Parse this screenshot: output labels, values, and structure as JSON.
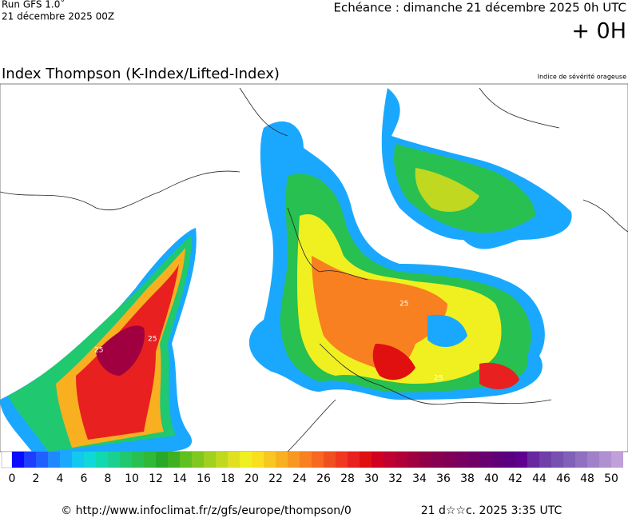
{
  "header": {
    "run": "Run GFS 1.0˚",
    "run_date": "21 décembre 2025 00Z",
    "valid": "Echéance : dimanche 21 décembre 2025 0h UTC",
    "lead": "+ 0H"
  },
  "map": {
    "title": "Index Thompson (K-Index/Lifted-Index)",
    "subtitle": "Indice de sévérité orageuse",
    "labels": [
      "25",
      "25",
      "25",
      "25"
    ]
  },
  "colorbar": {
    "ticks": [
      0,
      2,
      4,
      6,
      8,
      10,
      12,
      14,
      16,
      18,
      20,
      22,
      24,
      26,
      28,
      30,
      32,
      34,
      36,
      38,
      40,
      42,
      44,
      46,
      48,
      50
    ],
    "colors": [
      "#0a0aff",
      "#1d3dff",
      "#2060ff",
      "#1e88ff",
      "#1aa8ff",
      "#12c8f0",
      "#10d8d8",
      "#10d8b0",
      "#18d090",
      "#20c870",
      "#28c050",
      "#30b838",
      "#28a828",
      "#40b020",
      "#60c020",
      "#80c820",
      "#a0d020",
      "#c0d820",
      "#e0e020",
      "#f0f020",
      "#f8e020",
      "#f8c820",
      "#f8b020",
      "#f89820",
      "#f88020",
      "#f86820",
      "#f05020",
      "#f03820",
      "#e82020",
      "#e01010",
      "#d00020",
      "#c00030",
      "#b00038",
      "#a00040",
      "#900048",
      "#880050",
      "#800058",
      "#780060",
      "#700068",
      "#680070",
      "#600078",
      "#580080",
      "#600090",
      "#6828a0",
      "#7040a8",
      "#7850b0",
      "#8060b8",
      "#9070c0",
      "#a080c8",
      "#b090d0",
      "#c0a0d8"
    ]
  },
  "footer": {
    "source": "© http://www.infoclimat.fr/z/gfs/europe/thompson/0",
    "timestamp": "21 d☆☆c. 2025  3:35 UTC"
  }
}
